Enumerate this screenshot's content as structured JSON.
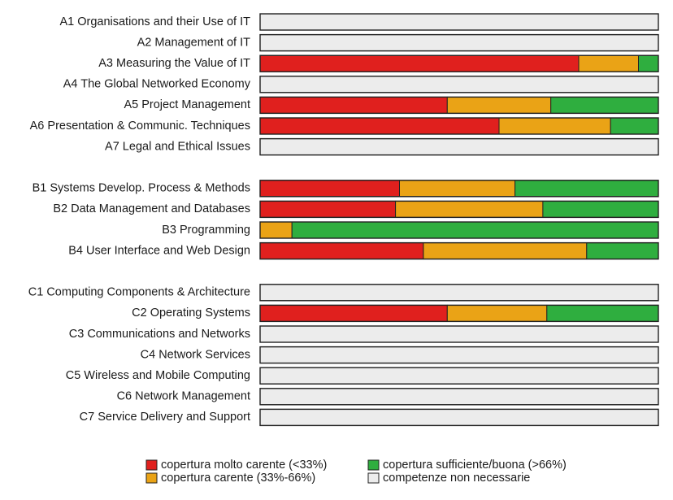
{
  "chart_data": {
    "type": "bar",
    "orientation": "horizontal",
    "stacked": true,
    "categories": [
      "A1 Organisations and their Use of IT",
      "A2 Management of IT",
      "A3 Measuring the Value of IT",
      "A4 The Global Networked Economy",
      "A5 Project Management",
      "A6 Presentation & Communic. Techniques",
      "A7 Legal and Ethical Issues",
      "B1 Systems Develop. Process & Methods",
      "B2 Data Management and Databases",
      "B3 Programming",
      "B4 User Interface and Web Design",
      "C1 Computing Components & Architecture",
      "C2 Operating Systems",
      "C3 Communications and Networks",
      "C4 Network Services",
      "C5 Wireless and Mobile Computing",
      "C6 Network Management",
      "C7 Service Delivery and Support"
    ],
    "series": [
      {
        "name": "copertura molto carente (<33%)",
        "color": "#e0201e",
        "values": [
          0,
          0,
          80,
          0,
          47,
          60,
          0,
          35,
          34,
          0,
          41,
          0,
          47,
          0,
          0,
          0,
          0,
          0
        ]
      },
      {
        "name": "copertura carente (33%-66%)",
        "color": "#eaa316",
        "values": [
          0,
          0,
          15,
          0,
          26,
          28,
          0,
          29,
          37,
          8,
          41,
          0,
          25,
          0,
          0,
          0,
          0,
          0
        ]
      },
      {
        "name": "copertura sufficiente/buona (>66%)",
        "color": "#2fae3f",
        "values": [
          0,
          0,
          5,
          0,
          27,
          12,
          0,
          36,
          29,
          92,
          18,
          0,
          28,
          0,
          0,
          0,
          0,
          0
        ]
      },
      {
        "name": "competenze non necessarie",
        "color": "#ececec",
        "values": [
          100,
          100,
          0,
          100,
          0,
          0,
          100,
          0,
          0,
          0,
          0,
          100,
          0,
          100,
          100,
          100,
          100,
          100
        ]
      }
    ],
    "xlim": [
      0,
      100
    ]
  }
}
